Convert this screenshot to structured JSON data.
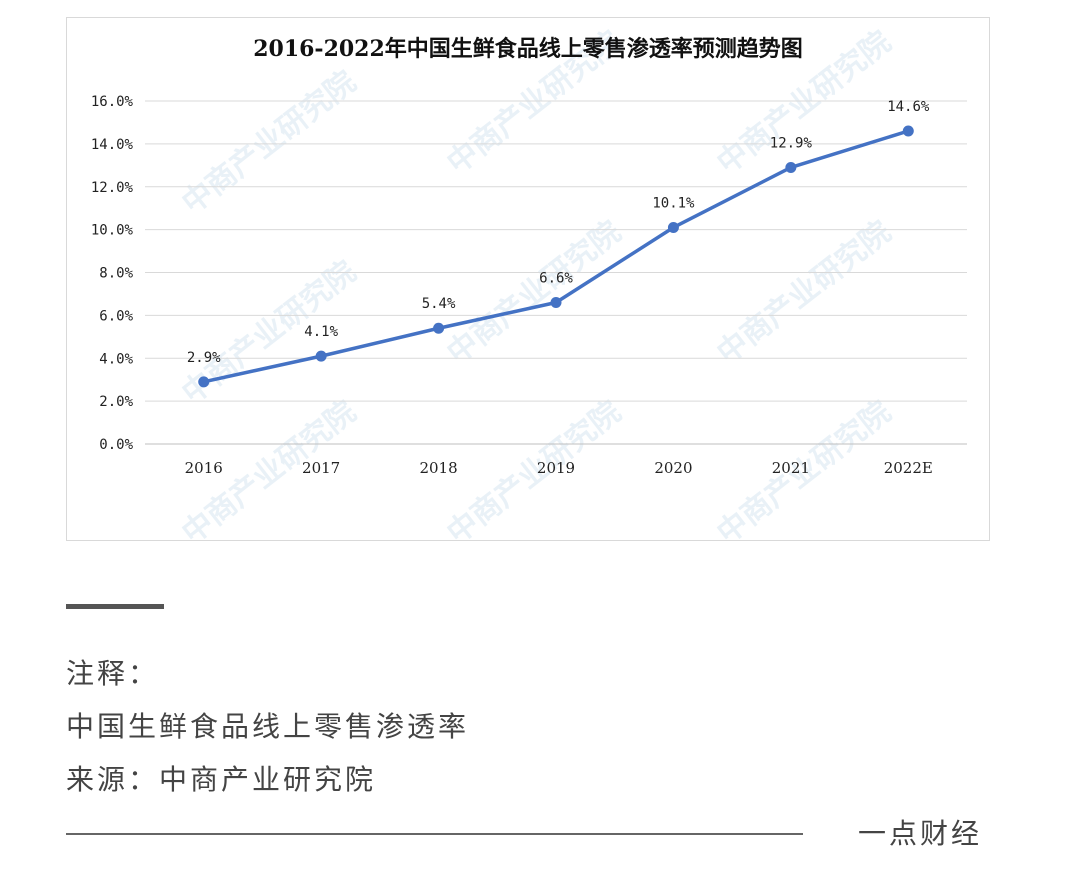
{
  "chart_data": {
    "type": "line",
    "title": "2016-2022年中国生鲜食品线上零售渗透率预测趋势图",
    "categories": [
      "2016",
      "2017",
      "2018",
      "2019",
      "2020",
      "2021",
      "2022E"
    ],
    "series": [
      {
        "values": [
          2.9,
          4.1,
          5.4,
          6.6,
          10.1,
          12.9,
          14.6
        ],
        "labels": [
          "2.9%",
          "4.1%",
          "5.4%",
          "6.6%",
          "10.1%",
          "12.9%",
          "14.6%"
        ]
      }
    ],
    "y_ticks": [
      "0.0%",
      "2.0%",
      "4.0%",
      "6.0%",
      "8.0%",
      "10.0%",
      "12.0%",
      "14.0%",
      "16.0%"
    ],
    "ylim": [
      0,
      16
    ],
    "y_unit": "%",
    "grid": true,
    "line_color": "#4472c4"
  },
  "watermark": {
    "text": "中商产业研究院"
  },
  "notes": {
    "heading": "注释：",
    "line1": "中国生鲜食品线上零售渗透率",
    "source": "来源：中商产业研究院"
  },
  "footer": {
    "brand": "一点财经"
  }
}
